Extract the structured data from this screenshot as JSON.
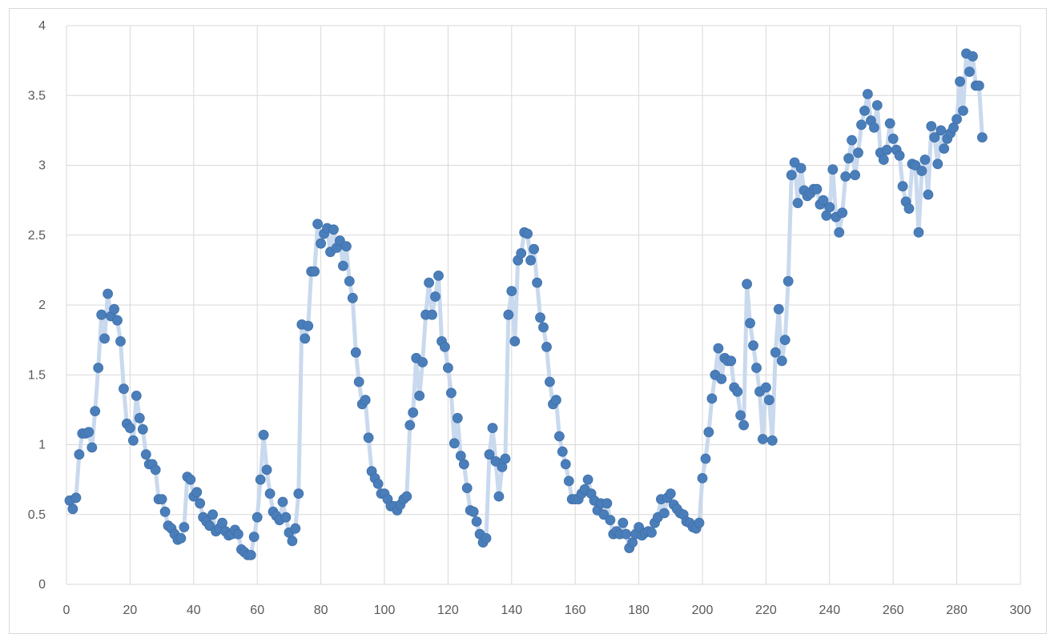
{
  "chart_data": {
    "type": "scatter",
    "title": "",
    "xlabel": "",
    "ylabel": "",
    "xlim": [
      0,
      300
    ],
    "ylim": [
      0,
      4
    ],
    "x_ticks": [
      "0",
      "20",
      "40",
      "60",
      "80",
      "100",
      "120",
      "140",
      "160",
      "180",
      "200",
      "220",
      "240",
      "260",
      "280",
      "300"
    ],
    "y_ticks": [
      "0",
      "0.5",
      "1",
      "1.5",
      "2",
      "2.5",
      "3",
      "3.5",
      "4"
    ],
    "grid": true,
    "legend": "none",
    "colors": {
      "marker": "#4a7ebb",
      "line": "#c9d9ee",
      "grid": "#d9d9d9",
      "text": "#595959"
    },
    "series": [
      {
        "x": [
          1,
          2,
          3,
          4,
          5,
          6,
          7,
          8,
          9,
          10,
          11,
          12,
          13,
          14,
          15,
          16,
          17,
          18,
          19,
          20,
          21,
          22,
          23,
          24,
          25,
          26,
          27,
          28,
          29,
          30,
          31,
          32,
          33,
          34,
          35,
          36,
          37,
          38,
          39,
          40,
          41,
          42,
          43,
          44,
          45,
          46,
          47,
          48,
          49,
          50,
          51,
          52,
          53,
          54,
          55,
          56,
          57,
          58,
          59,
          60,
          61,
          62,
          63,
          64,
          65,
          66,
          67,
          68,
          69,
          70,
          71,
          72,
          73,
          74,
          75,
          76,
          77,
          78,
          79,
          80,
          81,
          82,
          83,
          84,
          85,
          86,
          87,
          88,
          89,
          90,
          91,
          92,
          93,
          94,
          95,
          96,
          97,
          98,
          99,
          100,
          101,
          102,
          103,
          104,
          105,
          106,
          107,
          108,
          109,
          110,
          111,
          112,
          113,
          114,
          115,
          116,
          117,
          118,
          119,
          120,
          121,
          122,
          123,
          124,
          125,
          126,
          127,
          128,
          129,
          130,
          131,
          132,
          133,
          134,
          135,
          136,
          137,
          138,
          139,
          140,
          141,
          142,
          143,
          144,
          145,
          146,
          147,
          148,
          149,
          150,
          151,
          152,
          153,
          154,
          155,
          156,
          157,
          158,
          159,
          160,
          161,
          162,
          163,
          164,
          165,
          166,
          167,
          168,
          169,
          170,
          171,
          172,
          173,
          174,
          175,
          176,
          177,
          178,
          179,
          180,
          181,
          182,
          183,
          184,
          185,
          186,
          187,
          188,
          189,
          190,
          191,
          192,
          193,
          194,
          195,
          196,
          197,
          198,
          199,
          200,
          201,
          202,
          203,
          204,
          205,
          206,
          207,
          208,
          209,
          210,
          211,
          212,
          213,
          214,
          215,
          216,
          217,
          218,
          219,
          220,
          221,
          222,
          223,
          224,
          225,
          226,
          227,
          228,
          229,
          230,
          231,
          232,
          233,
          234,
          235,
          236,
          237,
          238,
          239,
          240,
          241,
          242,
          243,
          244,
          245,
          246,
          247,
          248,
          249,
          250,
          251,
          252,
          253,
          254,
          255,
          256,
          257,
          258,
          259,
          260,
          261,
          262,
          263,
          264,
          265,
          266,
          267,
          268,
          269,
          270,
          271,
          272,
          273,
          274,
          275,
          276,
          277,
          278,
          279,
          280,
          281,
          282,
          283,
          284,
          285,
          286,
          287,
          288
        ],
        "y": [
          0.6,
          0.54,
          0.62,
          0.93,
          1.08,
          1.08,
          1.09,
          0.98,
          1.24,
          1.55,
          1.93,
          1.76,
          2.08,
          1.92,
          1.97,
          1.89,
          1.74,
          1.4,
          1.15,
          1.12,
          1.03,
          1.35,
          1.19,
          1.11,
          0.93,
          0.86,
          0.86,
          0.82,
          0.61,
          0.61,
          0.52,
          0.42,
          0.4,
          0.36,
          0.32,
          0.33,
          0.41,
          0.77,
          0.75,
          0.63,
          0.66,
          0.58,
          0.48,
          0.45,
          0.42,
          0.5,
          0.38,
          0.4,
          0.44,
          0.38,
          0.35,
          0.36,
          0.39,
          0.36,
          0.25,
          0.23,
          0.21,
          0.21,
          0.34,
          0.48,
          0.75,
          1.07,
          0.82,
          0.65,
          0.52,
          0.49,
          0.46,
          0.59,
          0.48,
          0.37,
          0.31,
          0.4,
          0.65,
          1.86,
          1.76,
          1.85,
          2.24,
          2.24,
          2.58,
          2.44,
          2.51,
          2.55,
          2.38,
          2.54,
          2.41,
          2.46,
          2.28,
          2.42,
          2.17,
          2.05,
          1.66,
          1.45,
          1.29,
          1.32,
          1.05,
          0.81,
          0.76,
          0.72,
          0.65,
          0.65,
          0.61,
          0.56,
          0.56,
          0.53,
          0.57,
          0.61,
          0.63,
          1.14,
          1.23,
          1.62,
          1.35,
          1.59,
          1.93,
          2.16,
          1.93,
          2.06,
          2.21,
          1.74,
          1.7,
          1.55,
          1.37,
          1.01,
          1.19,
          0.92,
          0.86,
          0.69,
          0.53,
          0.52,
          0.45,
          0.36,
          0.3,
          0.33,
          0.93,
          1.12,
          0.88,
          0.63,
          0.84,
          0.9,
          1.93,
          2.1,
          1.74,
          2.32,
          2.37,
          2.52,
          2.51,
          2.32,
          2.4,
          2.16,
          1.91,
          1.84,
          1.7,
          1.45,
          1.29,
          1.32,
          1.06,
          0.95,
          0.86,
          0.74,
          0.61,
          0.61,
          0.61,
          0.65,
          0.68,
          0.75,
          0.65,
          0.6,
          0.53,
          0.58,
          0.5,
          0.58,
          0.46,
          0.36,
          0.38,
          0.36,
          0.44,
          0.36,
          0.26,
          0.3,
          0.36,
          0.41,
          0.35,
          0.37,
          0.38,
          0.37,
          0.44,
          0.48,
          0.61,
          0.51,
          0.62,
          0.65,
          0.57,
          0.54,
          0.51,
          0.5,
          0.45,
          0.44,
          0.41,
          0.4,
          0.44,
          0.76,
          0.9,
          1.09,
          1.33,
          1.5,
          1.69,
          1.47,
          1.62,
          1.6,
          1.6,
          1.41,
          1.38,
          1.21,
          1.14,
          2.15,
          1.87,
          1.71,
          1.55,
          1.38,
          1.04,
          1.41,
          1.32,
          1.03,
          1.66,
          1.97,
          1.6,
          1.75,
          2.17,
          2.93,
          3.02,
          2.73,
          2.98,
          2.82,
          2.78,
          2.8,
          2.83,
          2.83,
          2.72,
          2.75,
          2.64,
          2.7,
          2.97,
          2.63,
          2.52,
          2.66,
          2.92,
          3.05,
          3.18,
          2.93,
          3.09,
          3.29,
          3.39,
          3.51,
          3.32,
          3.27,
          3.43,
          3.09,
          3.04,
          3.11,
          3.3,
          3.19,
          3.11,
          3.07,
          2.85,
          2.74,
          2.69,
          3.01,
          3.0,
          2.52,
          2.96,
          3.04,
          2.79,
          3.28,
          3.2,
          3.01,
          3.25,
          3.12,
          3.19,
          3.23,
          3.27,
          3.33,
          3.6,
          3.39,
          3.8,
          3.67,
          3.78,
          3.57,
          3.57,
          3.2
        ]
      }
    ]
  }
}
